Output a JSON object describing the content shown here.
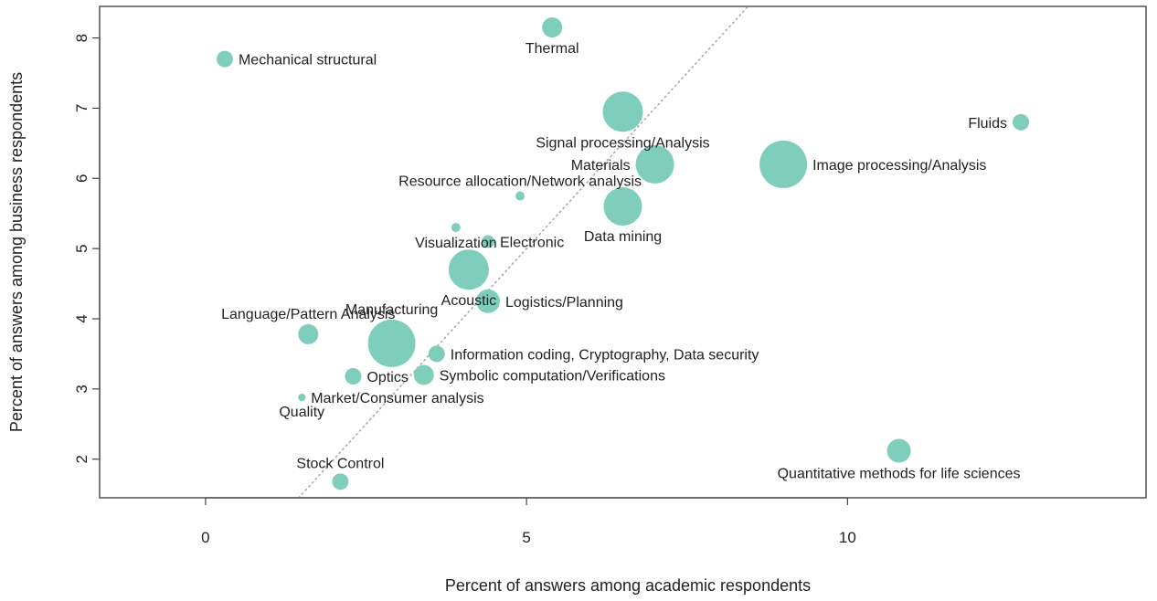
{
  "chart_data": {
    "type": "scatter",
    "title": "",
    "xlabel": "Percent of answers among academic respondents",
    "ylabel": "Percent of answers among business respondents",
    "xlim": [
      -1.65,
      14.65
    ],
    "ylim": [
      1.45,
      8.45
    ],
    "xticks": [
      0,
      5,
      10
    ],
    "yticks": [
      2,
      3,
      4,
      5,
      6,
      7,
      8
    ],
    "reference_line": {
      "slope": 1,
      "intercept": 0,
      "style": "dotted"
    },
    "grid": false,
    "marker_color": "#7fcdbb",
    "points": [
      {
        "label": "Thermal",
        "x": 5.4,
        "y": 8.15,
        "size": 11,
        "label_pos": "below"
      },
      {
        "label": "Mechanical structural",
        "x": 0.3,
        "y": 7.7,
        "size": 9,
        "label_pos": "right"
      },
      {
        "label": "Fluids",
        "x": 12.7,
        "y": 6.8,
        "size": 9,
        "label_pos": "left"
      },
      {
        "label": "Signal processing/Analysis",
        "x": 6.5,
        "y": 6.95,
        "size": 22,
        "label_pos": "below"
      },
      {
        "label": "Image processing/Analysis",
        "x": 9.0,
        "y": 6.2,
        "size": 26,
        "label_pos": "right"
      },
      {
        "label": "Materials",
        "x": 7.0,
        "y": 6.2,
        "size": 21,
        "label_pos": "left"
      },
      {
        "label": "Resource allocation/Network analysis",
        "x": 4.9,
        "y": 5.75,
        "size": 5,
        "label_pos": "above"
      },
      {
        "label": "Data mining",
        "x": 6.5,
        "y": 5.6,
        "size": 21,
        "label_pos": "below"
      },
      {
        "label": "Electronic",
        "x": 4.4,
        "y": 5.1,
        "size": 7,
        "label_pos": "right"
      },
      {
        "label": "Visualization",
        "x": 3.9,
        "y": 5.3,
        "size": 5,
        "label_pos": "below"
      },
      {
        "label": "Acoustic",
        "x": 4.1,
        "y": 4.7,
        "size": 22,
        "label_pos": "below"
      },
      {
        "label": "Logistics/Planning",
        "x": 4.4,
        "y": 4.25,
        "size": 13,
        "label_pos": "right"
      },
      {
        "label": "Language/Pattern Analysis",
        "x": 1.6,
        "y": 3.78,
        "size": 11,
        "label_pos": "above"
      },
      {
        "label": "Manufacturing",
        "x": 2.9,
        "y": 3.65,
        "size": 26,
        "label_pos": "above"
      },
      {
        "label": "Information coding, Cryptography, Data security",
        "x": 3.6,
        "y": 3.5,
        "size": 9,
        "label_pos": "right"
      },
      {
        "label": "Optics",
        "x": 2.3,
        "y": 3.18,
        "size": 9,
        "label_pos": "right"
      },
      {
        "label": "Symbolic computation/Verifications",
        "x": 3.4,
        "y": 3.2,
        "size": 11,
        "label_pos": "right"
      },
      {
        "label": "Market/Consumer analysis",
        "x": 1.5,
        "y": 2.88,
        "size": 4,
        "label_pos": "right"
      },
      {
        "label": "Quality",
        "x": 1.5,
        "y": 2.88,
        "size": 4,
        "label_pos": "below"
      },
      {
        "label": "Stock Control",
        "x": 2.1,
        "y": 1.68,
        "size": 9,
        "label_pos": "above"
      },
      {
        "label": "Quantitative methods for life sciences",
        "x": 10.8,
        "y": 2.12,
        "size": 13,
        "label_pos": "below"
      }
    ]
  }
}
